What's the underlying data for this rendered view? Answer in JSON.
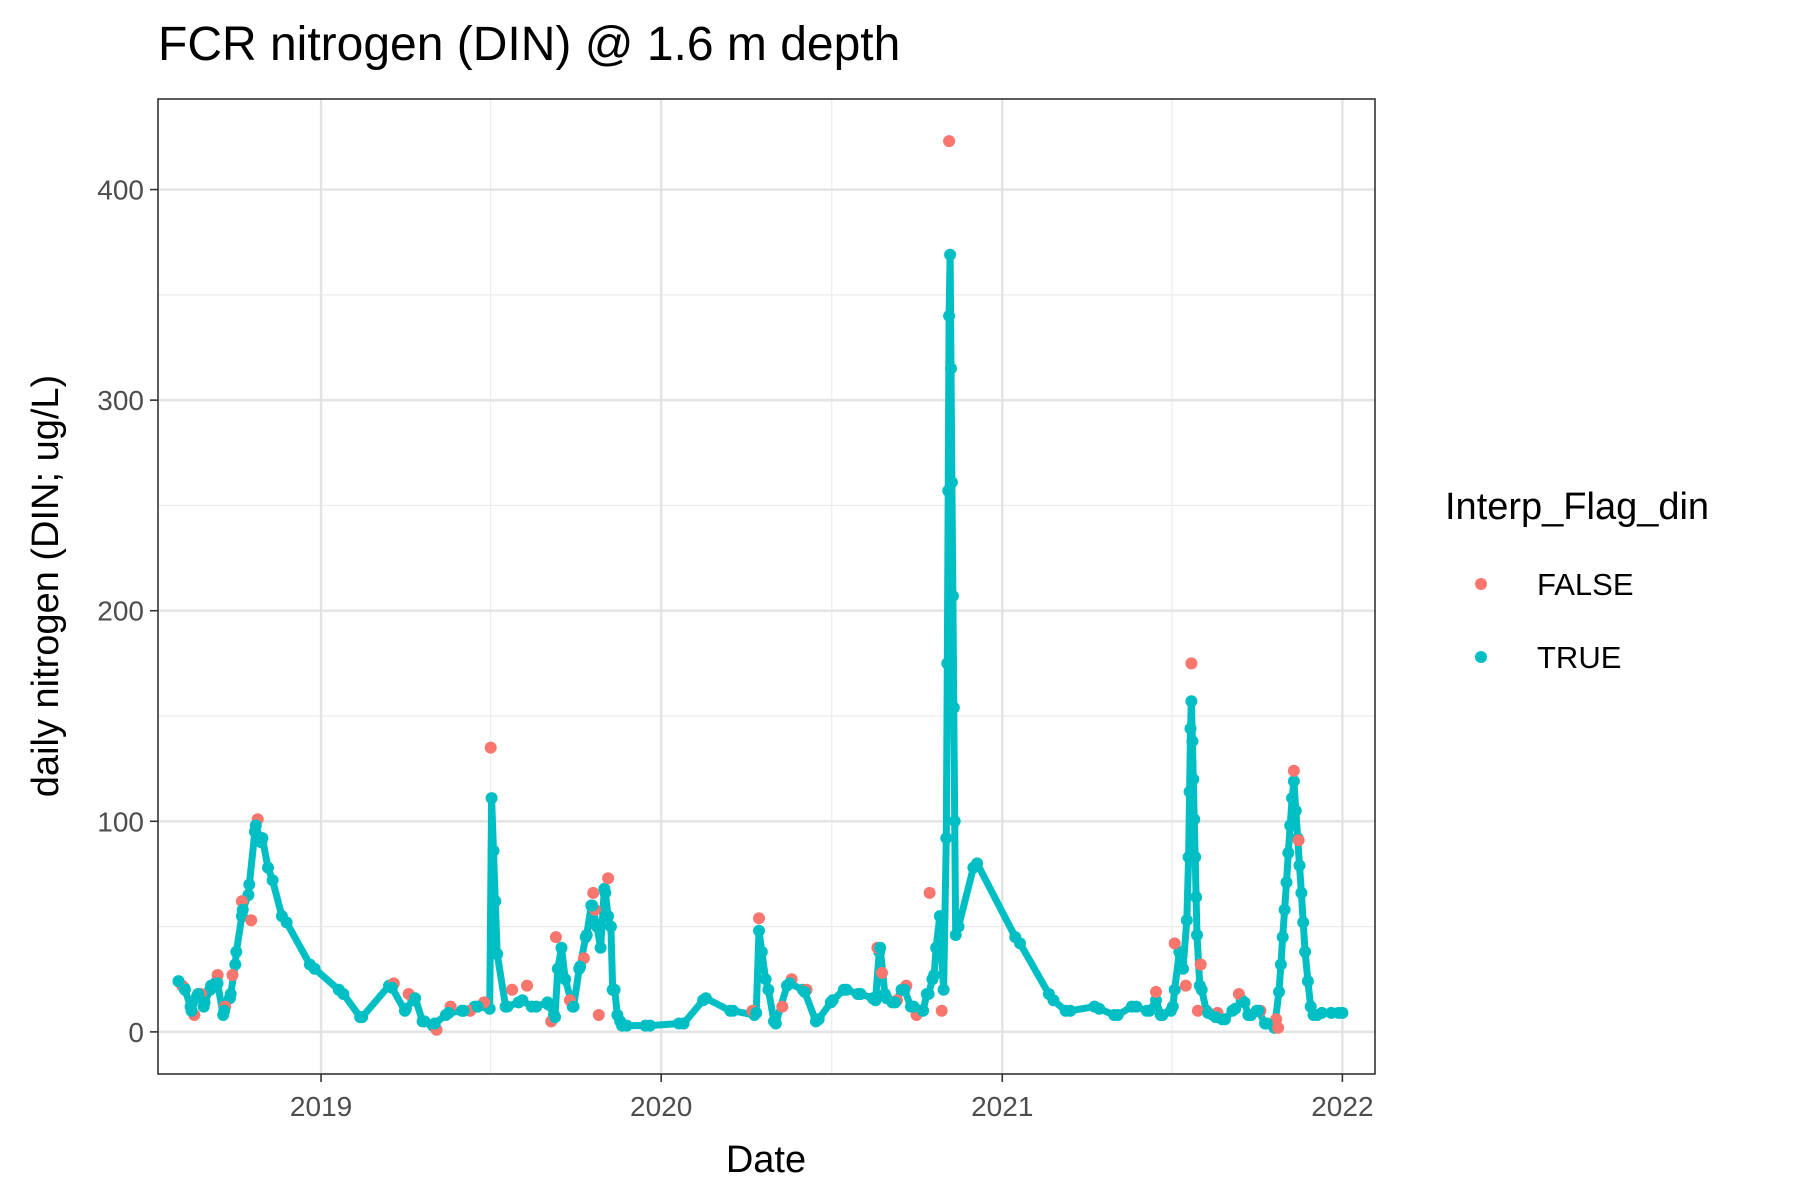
{
  "chart_data": {
    "type": "scatter",
    "title": "FCR nitrogen (DIN) @ 1.6 m depth",
    "xlabel": "Date",
    "ylabel": "daily nitrogen (DIN; ug/L)",
    "x_type": "date",
    "xlim": [
      "2018-07-10",
      "2022-02-05"
    ],
    "ylim": [
      -20,
      443
    ],
    "x_ticks": [
      "2019-01-01",
      "2020-01-01",
      "2021-01-01",
      "2022-01-01"
    ],
    "x_tick_labels": [
      "2019",
      "2020",
      "2021",
      "2022"
    ],
    "y_ticks": [
      0,
      100,
      200,
      300,
      400
    ],
    "y_tick_labels": [
      "0",
      "100",
      "200",
      "300",
      "400"
    ],
    "grid": true,
    "legend_position": "right",
    "legend": {
      "title": "Interp_Flag_din",
      "entries": [
        {
          "label": "FALSE",
          "color": "#F8766D"
        },
        {
          "label": "TRUE",
          "color": "#00BFC4"
        }
      ]
    },
    "series": [
      {
        "name": "TRUE",
        "color": "#00BFC4",
        "points": [
          [
            "2018-08-01",
            24
          ],
          [
            "2018-08-07",
            21
          ],
          [
            "2018-08-14",
            12
          ],
          [
            "2018-08-21",
            17
          ],
          [
            "2018-08-28",
            12
          ],
          [
            "2018-09-04",
            20
          ],
          [
            "2018-09-11",
            24
          ],
          [
            "2018-09-18",
            8
          ],
          [
            "2018-09-25",
            16
          ],
          [
            "2018-10-01",
            32
          ],
          [
            "2018-10-08",
            55
          ],
          [
            "2018-10-15",
            65
          ],
          [
            "2018-10-22",
            95
          ],
          [
            "2018-10-29",
            90
          ],
          [
            "2018-11-05",
            78
          ],
          [
            "2018-11-20",
            55
          ],
          [
            "2018-12-20",
            32
          ],
          [
            "2019-01-20",
            20
          ],
          [
            "2019-02-12",
            7
          ],
          [
            "2019-03-15",
            22
          ],
          [
            "2019-04-01",
            10
          ],
          [
            "2019-04-10",
            15
          ],
          [
            "2019-04-20",
            5
          ],
          [
            "2019-05-01",
            3
          ],
          [
            "2019-05-15",
            8
          ],
          [
            "2019-06-01",
            10
          ],
          [
            "2019-06-15",
            12
          ],
          [
            "2019-07-01",
            11
          ],
          [
            "2019-07-03",
            111
          ],
          [
            "2019-07-05",
            86
          ],
          [
            "2019-07-07",
            62
          ],
          [
            "2019-07-09",
            37
          ],
          [
            "2019-07-20",
            12
          ],
          [
            "2019-08-01",
            14
          ],
          [
            "2019-08-15",
            12
          ],
          [
            "2019-09-01",
            14
          ],
          [
            "2019-09-08",
            8
          ],
          [
            "2019-09-12",
            30
          ],
          [
            "2019-09-16",
            40
          ],
          [
            "2019-09-20",
            25
          ],
          [
            "2019-09-28",
            12
          ],
          [
            "2019-10-05",
            30
          ],
          [
            "2019-10-12",
            45
          ],
          [
            "2019-10-18",
            60
          ],
          [
            "2019-10-24",
            50
          ],
          [
            "2019-10-28",
            40
          ],
          [
            "2019-11-01",
            68
          ],
          [
            "2019-11-05",
            55
          ],
          [
            "2019-11-10",
            20
          ],
          [
            "2019-11-15",
            8
          ],
          [
            "2019-11-20",
            3
          ],
          [
            "2019-12-15",
            3
          ],
          [
            "2020-01-20",
            4
          ],
          [
            "2020-02-15",
            15
          ],
          [
            "2020-03-15",
            10
          ],
          [
            "2020-04-10",
            8
          ],
          [
            "2020-04-15",
            48
          ],
          [
            "2020-04-18",
            38
          ],
          [
            "2020-04-22",
            25
          ],
          [
            "2020-05-01",
            5
          ],
          [
            "2020-05-15",
            22
          ],
          [
            "2020-06-01",
            20
          ],
          [
            "2020-06-15",
            5
          ],
          [
            "2020-07-01",
            14
          ],
          [
            "2020-07-15",
            20
          ],
          [
            "2020-07-30",
            18
          ],
          [
            "2020-08-15",
            16
          ],
          [
            "2020-08-22",
            38
          ],
          [
            "2020-08-28",
            18
          ],
          [
            "2020-09-05",
            14
          ],
          [
            "2020-09-15",
            20
          ],
          [
            "2020-09-25",
            12
          ],
          [
            "2020-10-05",
            10
          ],
          [
            "2020-10-12",
            18
          ],
          [
            "2020-10-18",
            25
          ],
          [
            "2020-10-22",
            40
          ],
          [
            "2020-10-26",
            55
          ],
          [
            "2020-10-30",
            20
          ],
          [
            "2020-11-02",
            92
          ],
          [
            "2020-11-03",
            175
          ],
          [
            "2020-11-04",
            257
          ],
          [
            "2020-11-05",
            340
          ],
          [
            "2020-11-06",
            369
          ],
          [
            "2020-11-07",
            315
          ],
          [
            "2020-11-08",
            261
          ],
          [
            "2020-11-09",
            207
          ],
          [
            "2020-11-10",
            154
          ],
          [
            "2020-11-11",
            100
          ],
          [
            "2020-11-12",
            46
          ],
          [
            "2020-12-01",
            78
          ],
          [
            "2021-01-15",
            45
          ],
          [
            "2021-02-20",
            18
          ],
          [
            "2021-03-10",
            10
          ],
          [
            "2021-04-10",
            12
          ],
          [
            "2021-05-01",
            8
          ],
          [
            "2021-05-20",
            12
          ],
          [
            "2021-06-05",
            10
          ],
          [
            "2021-06-15",
            15
          ],
          [
            "2021-06-20",
            8
          ],
          [
            "2021-07-01",
            10
          ],
          [
            "2021-07-05",
            20
          ],
          [
            "2021-07-10",
            38
          ],
          [
            "2021-07-14",
            30
          ],
          [
            "2021-07-18",
            53
          ],
          [
            "2021-07-20",
            83
          ],
          [
            "2021-07-21",
            114
          ],
          [
            "2021-07-22",
            144
          ],
          [
            "2021-07-23",
            157
          ],
          [
            "2021-07-24",
            138
          ],
          [
            "2021-07-25",
            120
          ],
          [
            "2021-07-26",
            101
          ],
          [
            "2021-07-27",
            83
          ],
          [
            "2021-07-28",
            64
          ],
          [
            "2021-07-29",
            46
          ],
          [
            "2021-08-01",
            22
          ],
          [
            "2021-08-08",
            10
          ],
          [
            "2021-08-15",
            8
          ],
          [
            "2021-08-25",
            6
          ],
          [
            "2021-09-05",
            10
          ],
          [
            "2021-09-15",
            15
          ],
          [
            "2021-09-22",
            8
          ],
          [
            "2021-10-01",
            10
          ],
          [
            "2021-10-10",
            4
          ],
          [
            "2021-10-20",
            2
          ],
          [
            "2021-10-25",
            19
          ],
          [
            "2021-10-27",
            32
          ],
          [
            "2021-10-29",
            45
          ],
          [
            "2021-10-31",
            58
          ],
          [
            "2021-11-02",
            71
          ],
          [
            "2021-11-04",
            85
          ],
          [
            "2021-11-06",
            98
          ],
          [
            "2021-11-08",
            111
          ],
          [
            "2021-11-10",
            119
          ],
          [
            "2021-11-12",
            105
          ],
          [
            "2021-11-14",
            92
          ],
          [
            "2021-11-16",
            79
          ],
          [
            "2021-11-18",
            66
          ],
          [
            "2021-11-20",
            52
          ],
          [
            "2021-11-22",
            38
          ],
          [
            "2021-11-25",
            24
          ],
          [
            "2021-11-28",
            12
          ],
          [
            "2021-12-05",
            8
          ],
          [
            "2021-12-20",
            9
          ],
          [
            "2022-01-01",
            9
          ]
        ]
      },
      {
        "name": "FALSE",
        "color": "#F8766D",
        "points": [
          [
            "2018-08-05",
            22
          ],
          [
            "2018-08-18",
            8
          ],
          [
            "2018-08-25",
            18
          ],
          [
            "2018-09-12",
            27
          ],
          [
            "2018-09-20",
            12
          ],
          [
            "2018-09-28",
            27
          ],
          [
            "2018-10-08",
            62
          ],
          [
            "2018-10-18",
            53
          ],
          [
            "2018-10-25",
            101
          ],
          [
            "2019-03-20",
            23
          ],
          [
            "2019-04-05",
            18
          ],
          [
            "2019-05-05",
            1
          ],
          [
            "2019-05-20",
            12
          ],
          [
            "2019-06-10",
            10
          ],
          [
            "2019-06-25",
            14
          ],
          [
            "2019-07-02",
            135
          ],
          [
            "2019-07-25",
            20
          ],
          [
            "2019-08-10",
            22
          ],
          [
            "2019-09-05",
            5
          ],
          [
            "2019-09-10",
            45
          ],
          [
            "2019-09-25",
            15
          ],
          [
            "2019-10-10",
            35
          ],
          [
            "2019-10-20",
            66
          ],
          [
            "2019-10-22",
            58
          ],
          [
            "2019-10-26",
            8
          ],
          [
            "2019-11-05",
            73
          ],
          [
            "2020-04-08",
            10
          ],
          [
            "2020-04-15",
            54
          ],
          [
            "2020-05-10",
            12
          ],
          [
            "2020-05-20",
            25
          ],
          [
            "2020-06-05",
            20
          ],
          [
            "2020-08-20",
            40
          ],
          [
            "2020-08-25",
            28
          ],
          [
            "2020-09-10",
            15
          ],
          [
            "2020-09-20",
            22
          ],
          [
            "2020-10-01",
            8
          ],
          [
            "2020-10-15",
            66
          ],
          [
            "2020-10-28",
            10
          ],
          [
            "2020-11-05",
            423
          ],
          [
            "2021-06-15",
            19
          ],
          [
            "2021-07-05",
            42
          ],
          [
            "2021-07-17",
            22
          ],
          [
            "2021-07-23",
            175
          ],
          [
            "2021-07-30",
            10
          ],
          [
            "2021-08-02",
            32
          ],
          [
            "2021-08-20",
            9
          ],
          [
            "2021-09-12",
            18
          ],
          [
            "2021-10-05",
            10
          ],
          [
            "2021-10-22",
            6
          ],
          [
            "2021-10-24",
            2
          ],
          [
            "2021-11-10",
            124
          ],
          [
            "2021-11-15",
            91
          ]
        ]
      },
      {
        "name": "TRUE",
        "color": "#00BFC4",
        "points": [
          [
            "2018-08-01",
            24
          ],
          [
            "2018-08-08",
            20
          ],
          [
            "2018-08-15",
            10
          ],
          [
            "2018-08-22",
            18
          ],
          [
            "2018-08-29",
            14
          ],
          [
            "2018-09-05",
            22
          ],
          [
            "2018-09-12",
            23
          ],
          [
            "2018-09-19",
            10
          ],
          [
            "2018-09-26",
            18
          ],
          [
            "2018-10-02",
            38
          ],
          [
            "2018-10-09",
            58
          ],
          [
            "2018-10-16",
            70
          ],
          [
            "2018-10-23",
            98
          ],
          [
            "2018-10-30",
            92
          ],
          [
            "2018-11-10",
            72
          ],
          [
            "2018-11-25",
            52
          ],
          [
            "2018-12-25",
            30
          ],
          [
            "2019-01-25",
            18
          ],
          [
            "2019-02-14",
            7
          ],
          [
            "2019-03-18",
            21
          ],
          [
            "2019-04-02",
            11
          ],
          [
            "2019-04-12",
            16
          ],
          [
            "2019-04-22",
            5
          ],
          [
            "2019-05-03",
            4
          ],
          [
            "2019-05-18",
            9
          ],
          [
            "2019-06-03",
            10
          ],
          [
            "2019-06-18",
            12
          ],
          [
            "2019-07-18",
            12
          ],
          [
            "2019-08-05",
            15
          ],
          [
            "2019-08-20",
            12
          ],
          [
            "2019-09-02",
            13
          ],
          [
            "2019-09-09",
            7
          ],
          [
            "2019-09-29",
            12
          ],
          [
            "2019-10-06",
            31
          ],
          [
            "2019-10-13",
            46
          ],
          [
            "2019-10-19",
            60
          ],
          [
            "2019-11-02",
            66
          ],
          [
            "2019-11-08",
            50
          ],
          [
            "2019-11-12",
            20
          ],
          [
            "2019-11-18",
            5
          ],
          [
            "2019-11-25",
            3
          ],
          [
            "2019-12-20",
            3
          ],
          [
            "2020-01-25",
            4
          ],
          [
            "2020-02-18",
            16
          ],
          [
            "2020-03-18",
            10
          ],
          [
            "2020-04-12",
            9
          ],
          [
            "2020-04-25",
            20
          ],
          [
            "2020-05-03",
            4
          ],
          [
            "2020-05-18",
            23
          ],
          [
            "2020-06-03",
            19
          ],
          [
            "2020-06-18",
            6
          ],
          [
            "2020-07-03",
            15
          ],
          [
            "2020-07-18",
            20
          ],
          [
            "2020-08-02",
            18
          ],
          [
            "2020-08-18",
            15
          ],
          [
            "2020-08-23",
            40
          ],
          [
            "2020-08-30",
            16
          ],
          [
            "2020-09-08",
            14
          ],
          [
            "2020-09-18",
            20
          ],
          [
            "2020-09-28",
            12
          ],
          [
            "2020-10-08",
            10
          ],
          [
            "2020-10-14",
            18
          ],
          [
            "2020-10-20",
            27
          ],
          [
            "2020-11-15",
            50
          ],
          [
            "2020-12-05",
            80
          ],
          [
            "2021-01-20",
            42
          ],
          [
            "2021-02-25",
            15
          ],
          [
            "2021-03-15",
            10
          ],
          [
            "2021-04-15",
            11
          ],
          [
            "2021-05-05",
            8
          ],
          [
            "2021-05-25",
            12
          ],
          [
            "2021-06-08",
            10
          ],
          [
            "2021-06-22",
            8
          ],
          [
            "2021-07-03",
            12
          ],
          [
            "2021-07-12",
            36
          ],
          [
            "2021-08-03",
            20
          ],
          [
            "2021-08-10",
            9
          ],
          [
            "2021-08-18",
            7
          ],
          [
            "2021-08-28",
            6
          ],
          [
            "2021-09-08",
            11
          ],
          [
            "2021-09-18",
            14
          ],
          [
            "2021-09-25",
            8
          ],
          [
            "2021-10-03",
            10
          ],
          [
            "2021-10-12",
            4
          ],
          [
            "2021-12-01",
            8
          ],
          [
            "2021-12-10",
            9
          ],
          [
            "2021-12-28",
            9
          ]
        ]
      }
    ]
  }
}
